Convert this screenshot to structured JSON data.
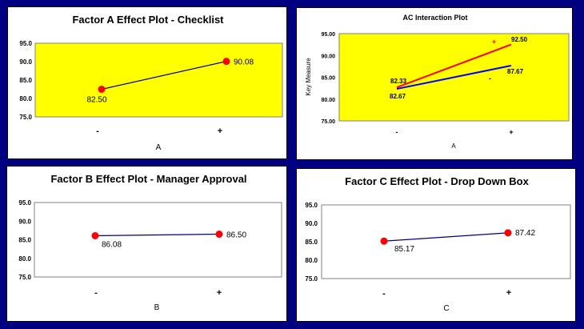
{
  "colors": {
    "background": "#000080",
    "plot_yellow": "#ffff00",
    "point_red": "#ff0000",
    "line_navy": "#000080",
    "series_red": "#ff0000",
    "series_blue": "#0000ff"
  },
  "chart_data": [
    {
      "type": "line",
      "title": "Factor A Effect Plot - Checklist",
      "xlabel": "A",
      "categories": [
        "-",
        "+"
      ],
      "values": [
        82.5,
        90.08
      ],
      "value_labels": [
        "82.50",
        "90.08"
      ],
      "ylim": [
        75.0,
        95.0
      ],
      "yticks": [
        "75.0",
        "80.0",
        "85.0",
        "90.0",
        "95.0"
      ],
      "plot_background": "#ffff00"
    },
    {
      "type": "line",
      "title": "AC Interaction Plot",
      "xlabel": "A",
      "ylabel": "Key Measure",
      "categories": [
        "-",
        "+"
      ],
      "series": [
        {
          "marker": "+",
          "color": "#ff0000",
          "values": [
            82.67,
            92.5
          ],
          "value_labels": [
            "82.67",
            "92.50"
          ]
        },
        {
          "marker": "-",
          "color": "#0000ff",
          "values": [
            82.33,
            87.67
          ],
          "value_labels": [
            "82.33",
            "87.67"
          ]
        }
      ],
      "ylim": [
        75.0,
        95.0
      ],
      "yticks": [
        "75.00",
        "80.00",
        "85.00",
        "90.00",
        "95.00"
      ],
      "plot_background": "#ffff00"
    },
    {
      "type": "line",
      "title": "Factor B Effect Plot - Manager Approval",
      "xlabel": "B",
      "categories": [
        "-",
        "+"
      ],
      "values": [
        86.08,
        86.5
      ],
      "value_labels": [
        "86.08",
        "86.50"
      ],
      "ylim": [
        75.0,
        95.0
      ],
      "yticks": [
        "75.0",
        "80.0",
        "85.0",
        "90.0",
        "95.0"
      ],
      "plot_background": "#ffffff"
    },
    {
      "type": "line",
      "title": "Factor C Effect Plot - Drop Down Box",
      "xlabel": "C",
      "categories": [
        "-",
        "+"
      ],
      "values": [
        85.17,
        87.42
      ],
      "value_labels": [
        "85.17",
        "87.42"
      ],
      "ylim": [
        75.0,
        95.0
      ],
      "yticks": [
        "75.0",
        "80.0",
        "85.0",
        "90.0",
        "95.0"
      ],
      "plot_background": "#ffffff"
    }
  ]
}
